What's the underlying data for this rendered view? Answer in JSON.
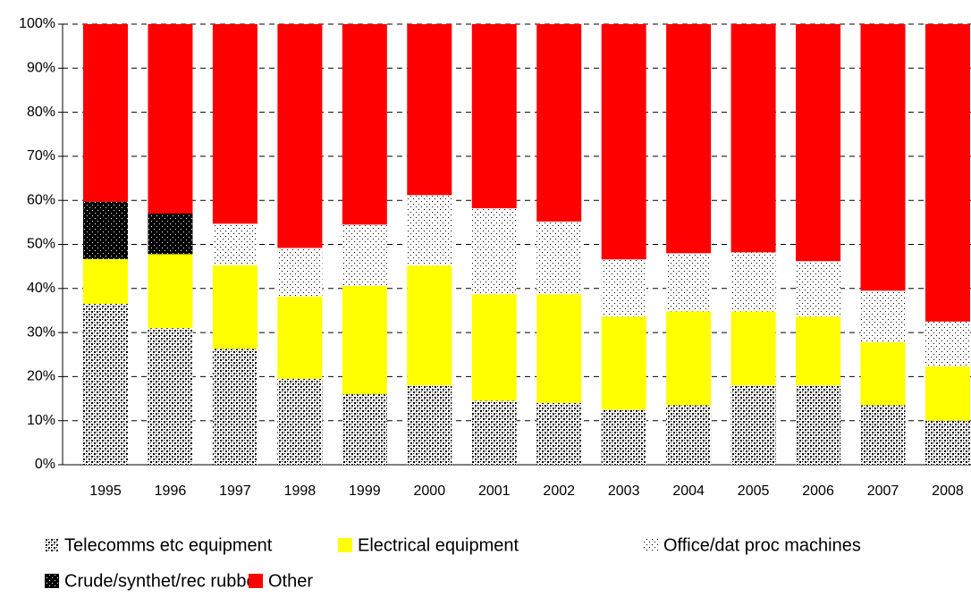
{
  "chart_data": {
    "type": "stacked-bar-100",
    "categories": [
      "1995",
      "1996",
      "1997",
      "1998",
      "1999",
      "2000",
      "2001",
      "2002",
      "2003",
      "2004",
      "2005",
      "2006",
      "2007",
      "2008"
    ],
    "series": [
      {
        "name": "Telecomms etc equipment",
        "color": "#000000",
        "pattern": "dense-dots",
        "values": [
          36.5,
          31,
          26.3,
          19.5,
          16,
          18,
          14.5,
          14,
          12.5,
          13.5,
          18,
          18,
          13.5,
          10
        ]
      },
      {
        "name": "Electrical equipment",
        "color": "#ffff00",
        "values": [
          10.2,
          16.8,
          19,
          18.7,
          24.6,
          27.2,
          24.2,
          24.7,
          21.1,
          21.3,
          16.8,
          15.6,
          14.3,
          12.3
        ]
      },
      {
        "name": "Office/dat proc machines",
        "color": "#000000",
        "pattern": "sparse-dots",
        "values": [
          0,
          0,
          9.4,
          11,
          13.9,
          16,
          19.5,
          16.5,
          13,
          13.2,
          13.4,
          12.6,
          11.7,
          10.2
        ]
      },
      {
        "name": "Crude/synthet/rec rubber",
        "color": "#000000",
        "pattern": "black-dots",
        "values": [
          13,
          9.2,
          0,
          0,
          0,
          0,
          0,
          0,
          0,
          0,
          0,
          0,
          0,
          0
        ]
      },
      {
        "name": "Other",
        "color": "#ff0000",
        "values": [
          40.3,
          43,
          45.3,
          50.8,
          45.5,
          38.8,
          41.8,
          44.8,
          53.4,
          52,
          51.8,
          53.8,
          60.5,
          67.5
        ]
      }
    ],
    "ylim": [
      0,
      100
    ],
    "yticks": [
      {
        "value": 0,
        "label": "0%"
      },
      {
        "value": 10,
        "label": "10%"
      },
      {
        "value": 20,
        "label": "20%"
      },
      {
        "value": 30,
        "label": "30%"
      },
      {
        "value": 40,
        "label": "40%"
      },
      {
        "value": 50,
        "label": "50%"
      },
      {
        "value": 60,
        "label": "60%"
      },
      {
        "value": 70,
        "label": "70%"
      },
      {
        "value": 80,
        "label": "80%"
      },
      {
        "value": 90,
        "label": "90%"
      },
      {
        "value": 100,
        "label": "100%"
      }
    ],
    "grid": true,
    "legend": "bottom"
  }
}
